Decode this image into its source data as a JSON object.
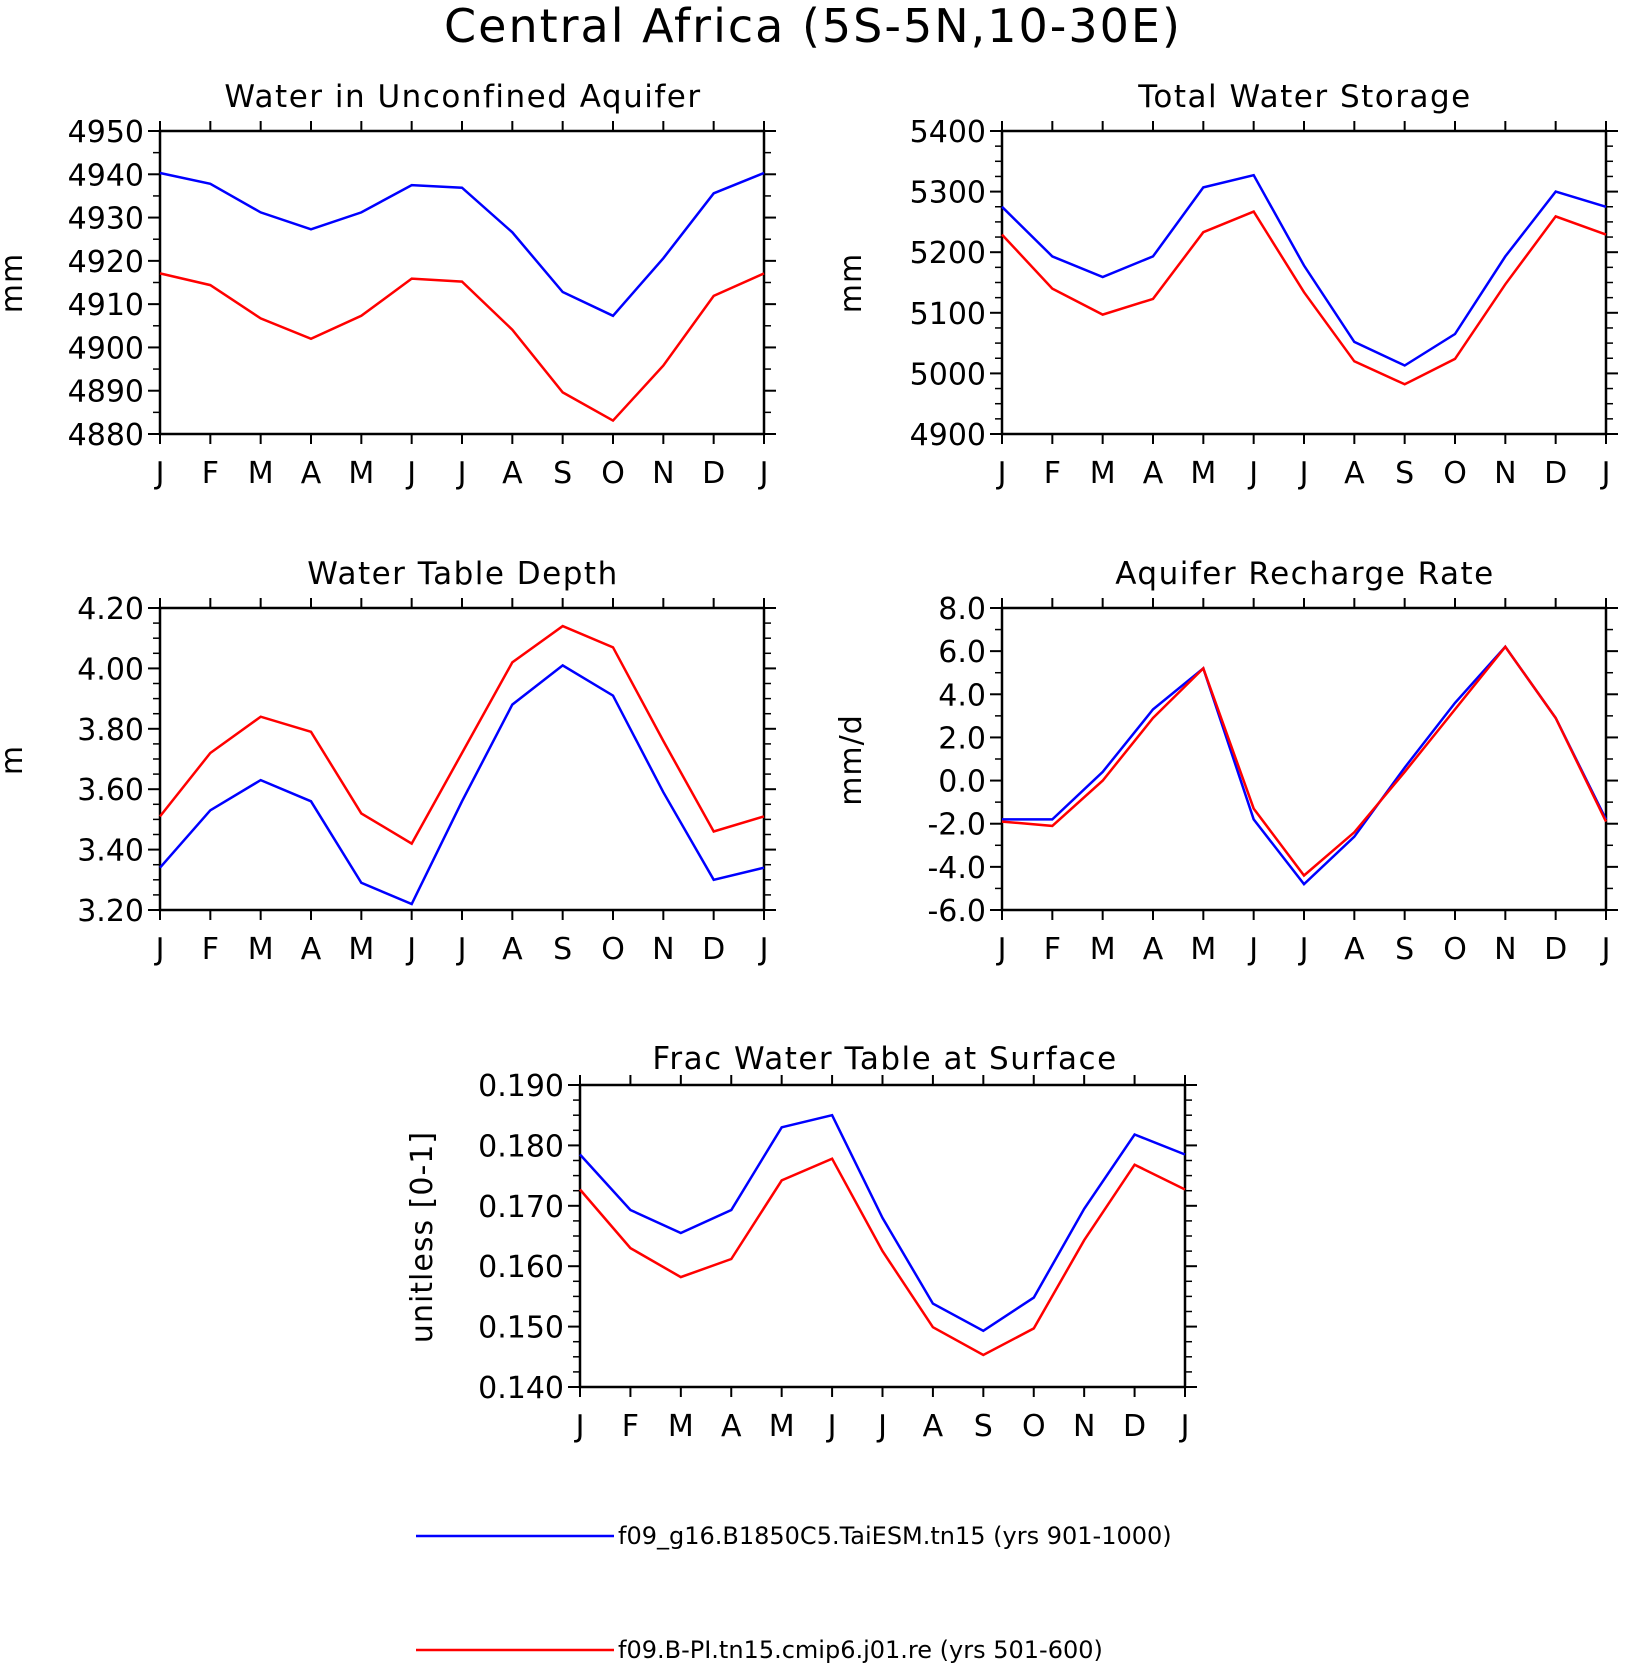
{
  "figure": {
    "title": "Central Africa (5S-5N,10-30E)"
  },
  "colors": {
    "series_1": "#0000ff",
    "series_2": "#ff0000",
    "axes": "#000000"
  },
  "legend": {
    "placement": "bottom-center",
    "entries": [
      "f09_g16.B1850C5.TaiESM.tn15 (yrs 901-1000)",
      "f09.B-PI.tn15.cmip6.j01.re (yrs 501-600)"
    ]
  },
  "chart_data": [
    {
      "type": "line",
      "title": "Water in Unconfined Aquifer",
      "xlabel": "",
      "ylabel": "mm",
      "ylim": [
        4880,
        4950
      ],
      "yticks": [
        "4880",
        "4890",
        "4900",
        "4910",
        "4920",
        "4930",
        "4940",
        "4950"
      ],
      "x": [
        "J",
        "F",
        "M",
        "A",
        "M",
        "J",
        "J",
        "A",
        "S",
        "O",
        "N",
        "D",
        "J"
      ],
      "series": [
        {
          "name": "f09_g16.B1850C5.TaiESM.tn15 (yrs 901-1000)",
          "values": [
            4940.3,
            4937.8,
            4931.2,
            4927.3,
            4931.2,
            4937.5,
            4936.9,
            4926.6,
            4912.8,
            4907.3,
            4920.6,
            4935.6,
            4940.3
          ]
        },
        {
          "name": "f09.B-PI.tn15.cmip6.j01.re (yrs 501-600)",
          "values": [
            4917.1,
            4914.4,
            4906.7,
            4902.0,
            4907.3,
            4915.9,
            4915.2,
            4904.1,
            4889.6,
            4883.1,
            4895.8,
            4911.9,
            4917.1
          ]
        }
      ]
    },
    {
      "type": "line",
      "title": "Total Water Storage",
      "xlabel": "",
      "ylabel": "mm",
      "ylim": [
        4900,
        5400
      ],
      "yticks": [
        "4900",
        "5000",
        "5100",
        "5200",
        "5300",
        "5400"
      ],
      "x": [
        "J",
        "F",
        "M",
        "A",
        "M",
        "J",
        "J",
        "A",
        "S",
        "O",
        "N",
        "D",
        "J"
      ],
      "series": [
        {
          "name": "f09_g16.B1850C5.TaiESM.tn15 (yrs 901-1000)",
          "values": [
            5275,
            5193,
            5159,
            5193,
            5307,
            5327,
            5178,
            5052,
            5013,
            5065,
            5193,
            5300,
            5275
          ]
        },
        {
          "name": "f09.B-PI.tn15.cmip6.j01.re (yrs 501-600)",
          "values": [
            5229,
            5140,
            5097,
            5123,
            5233,
            5267,
            5134,
            5020,
            4982,
            5024,
            5147,
            5259,
            5229
          ]
        }
      ]
    },
    {
      "type": "line",
      "title": "Water Table Depth",
      "xlabel": "",
      "ylabel": "m",
      "ylim": [
        3.2,
        4.2
      ],
      "yticks": [
        "3.20",
        "3.40",
        "3.60",
        "3.80",
        "4.00",
        "4.20"
      ],
      "x": [
        "J",
        "F",
        "M",
        "A",
        "M",
        "J",
        "J",
        "A",
        "S",
        "O",
        "N",
        "D",
        "J"
      ],
      "series": [
        {
          "name": "f09_g16.B1850C5.TaiESM.tn15 (yrs 901-1000)",
          "values": [
            3.34,
            3.53,
            3.63,
            3.56,
            3.29,
            3.22,
            3.56,
            3.88,
            4.01,
            3.91,
            3.59,
            3.3,
            3.34
          ]
        },
        {
          "name": "f09.B-PI.tn15.cmip6.j01.re (yrs 501-600)",
          "values": [
            3.51,
            3.72,
            3.84,
            3.79,
            3.52,
            3.42,
            3.72,
            4.02,
            4.14,
            4.07,
            3.76,
            3.46,
            3.51
          ]
        }
      ]
    },
    {
      "type": "line",
      "title": "Aquifer Recharge Rate",
      "xlabel": "",
      "ylabel": "mm/d",
      "ylim": [
        -6.0,
        8.0
      ],
      "yticks": [
        "-6.0",
        "-4.0",
        "-2.0",
        "0.0",
        "2.0",
        "4.0",
        "6.0",
        "8.0"
      ],
      "x": [
        "J",
        "F",
        "M",
        "A",
        "M",
        "J",
        "J",
        "A",
        "S",
        "O",
        "N",
        "D",
        "J"
      ],
      "series": [
        {
          "name": "f09_g16.B1850C5.TaiESM.tn15 (yrs 901-1000)",
          "values": [
            -1.8,
            -1.8,
            0.4,
            3.3,
            5.2,
            -1.8,
            -4.8,
            -2.6,
            0.6,
            3.6,
            6.2,
            2.9,
            -1.8
          ]
        },
        {
          "name": "f09.B-PI.tn15.cmip6.j01.re (yrs 501-600)",
          "values": [
            -1.9,
            -2.1,
            0.0,
            2.9,
            5.2,
            -1.3,
            -4.4,
            -2.4,
            0.4,
            3.3,
            6.2,
            2.9,
            -1.9
          ]
        }
      ]
    },
    {
      "type": "line",
      "title": "Frac Water Table at Surface",
      "xlabel": "",
      "ylabel": "unitless [0-1]",
      "ylim": [
        0.14,
        0.19
      ],
      "yticks": [
        "0.140",
        "0.150",
        "0.160",
        "0.170",
        "0.180",
        "0.190"
      ],
      "x": [
        "J",
        "F",
        "M",
        "A",
        "M",
        "J",
        "J",
        "A",
        "S",
        "O",
        "N",
        "D",
        "J"
      ],
      "series": [
        {
          "name": "f09_g16.B1850C5.TaiESM.tn15 (yrs 901-1000)",
          "values": [
            0.1785,
            0.1693,
            0.1655,
            0.1693,
            0.183,
            0.185,
            0.168,
            0.1538,
            0.1493,
            0.1548,
            0.1695,
            0.1818,
            0.1785
          ]
        },
        {
          "name": "f09.B-PI.tn15.cmip6.j01.re (yrs 501-600)",
          "values": [
            0.1727,
            0.163,
            0.1582,
            0.1612,
            0.1742,
            0.1778,
            0.1625,
            0.1499,
            0.1453,
            0.1497,
            0.1643,
            0.1768,
            0.1727
          ]
        }
      ]
    }
  ]
}
